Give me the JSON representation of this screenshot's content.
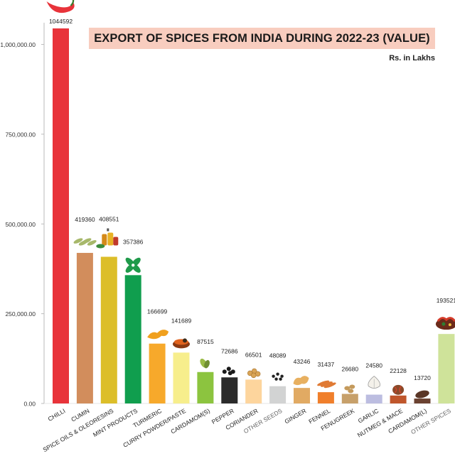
{
  "chart_data": {
    "type": "bar",
    "title": "EXPORT OF SPICES FROM INDIA DURING 2022-23 (VALUE)",
    "unit_label": "Rs. in Lakhs",
    "xlabel": "",
    "ylabel": "",
    "ylim": [
      0,
      1044592
    ],
    "y_ticks": [
      0,
      250000,
      500000,
      750000,
      1000000
    ],
    "y_tick_labels": [
      "0.00",
      "250,000.00",
      "500,000.00",
      "750,000.00",
      "1,000,000.00"
    ],
    "grid": false,
    "categories": [
      "CHILLI",
      "CUMIN",
      "SPICE OILS & OLEORESINS",
      "MINT PRODUCTS",
      "TURMERIC",
      "CURRY POWDER/PASTE",
      "CARDAMOM(S)",
      "PEPPER",
      "CORIANDER",
      "OTHER SEEDS",
      "GINGER",
      "FENNEL",
      "FENUGREEK",
      "GARLIC",
      "NUTMEG & MACE",
      "CARDAMOM(L)",
      "OTHER SPICES"
    ],
    "values": [
      1044592,
      419360,
      408551,
      357386,
      166699,
      141689,
      87515,
      72686,
      66501,
      48089,
      43246,
      31437,
      26680,
      24580,
      22128,
      13720,
      193521
    ],
    "data_labels": [
      "1044592",
      "419360",
      "408551",
      "357386",
      "166699",
      "141689",
      "87515",
      "72686",
      "66501",
      "48089",
      "43246",
      "31437",
      "26680",
      "24580",
      "22128",
      "13720",
      "193521"
    ],
    "bar_colors": [
      "#e8333a",
      "#d28d5c",
      "#dcbe29",
      "#109e4e",
      "#f7a92b",
      "#f7ee8c",
      "#8cc43f",
      "#2b2b2b",
      "#fdd59d",
      "#d2d3d3",
      "#e1aa63",
      "#f07f2b",
      "#c7a06a",
      "#bcbde0",
      "#c0562b",
      "#6b4231",
      "#cfe39a"
    ],
    "label_colors": [
      "#222222",
      "#222222",
      "#222222",
      "#222222",
      "#222222",
      "#222222",
      "#222222",
      "#222222",
      "#222222",
      "#666666",
      "#222222",
      "#222222",
      "#222222",
      "#222222",
      "#222222",
      "#222222",
      "#666666"
    ],
    "icons": [
      "chilli-icon",
      "cumin-icon",
      "spice-oils-icon",
      "mint-icon",
      "turmeric-icon",
      "curry-powder-icon",
      "cardamom-small-icon",
      "pepper-icon",
      "coriander-icon",
      "other-seeds-icon",
      "ginger-icon",
      "fennel-icon",
      "fenugreek-icon",
      "garlic-icon",
      "nutmeg-mace-icon",
      "cardamom-large-icon",
      "other-spices-icon"
    ]
  }
}
